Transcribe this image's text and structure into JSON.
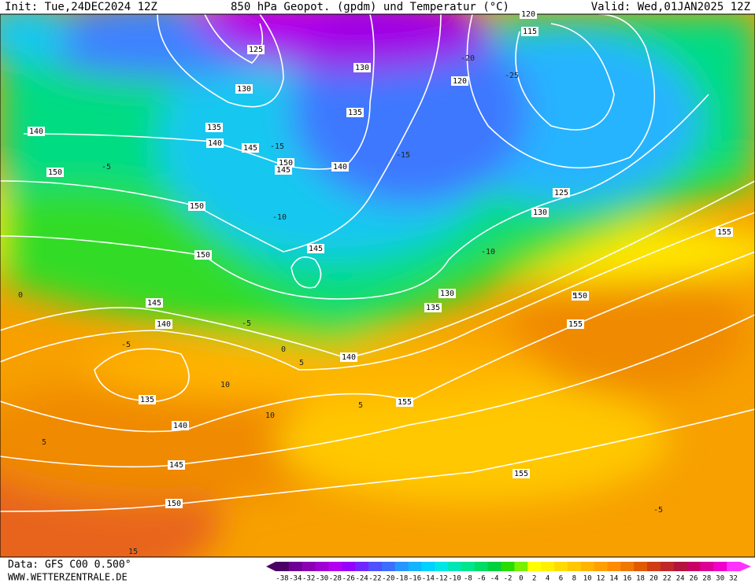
{
  "header": {
    "init": "Init: Tue,24DEC2024 12Z",
    "title": "850 hPa Geopot. (gpdm) und Temperatur (°C)",
    "valid": "Valid: Wed,01JAN2025 12Z"
  },
  "footer": {
    "data": "Data: GFS C00 0.500°",
    "site": "WWW.WETTERZENTRALE.DE"
  },
  "colorbar": {
    "ticks": [
      -38,
      -34,
      -32,
      -30,
      -28,
      -26,
      -24,
      -22,
      -20,
      -18,
      -16,
      -14,
      -12,
      -10,
      -8,
      -6,
      -4,
      -2,
      0,
      2,
      4,
      6,
      8,
      10,
      12,
      14,
      16,
      18,
      20,
      22,
      24,
      26,
      28,
      30,
      32
    ],
    "colors": [
      "#4b0066",
      "#6e0096",
      "#8c00b4",
      "#a000d2",
      "#b400f0",
      "#9600ff",
      "#6e28ff",
      "#5050ff",
      "#3c6eff",
      "#2896ff",
      "#14b4ff",
      "#00d2ff",
      "#00e6e6",
      "#00e6b4",
      "#00e68c",
      "#00dc64",
      "#00d23c",
      "#28dc00",
      "#78f000",
      "#ffff00",
      "#fff000",
      "#ffdc00",
      "#ffc800",
      "#ffb400",
      "#ffa000",
      "#ff8c00",
      "#f07800",
      "#e05a00",
      "#d03c14",
      "#c02828",
      "#b4143c",
      "#c80064",
      "#dc0096",
      "#f000c8",
      "#ff32ff"
    ]
  },
  "geopotential_labels": [
    125,
    130,
    135,
    140,
    145,
    150,
    145,
    140,
    135,
    130,
    120,
    115,
    125,
    130,
    155,
    140,
    150,
    150,
    150,
    145,
    145,
    140,
    135,
    140,
    145,
    150,
    140,
    135,
    130,
    155,
    155,
    150,
    155,
    120
  ],
  "temperature_labels": [
    -15,
    -10,
    -5,
    -20,
    -25,
    -15,
    -10,
    -5,
    0,
    -5,
    0,
    5,
    10,
    10,
    5,
    15,
    5,
    -5,
    5
  ]
}
